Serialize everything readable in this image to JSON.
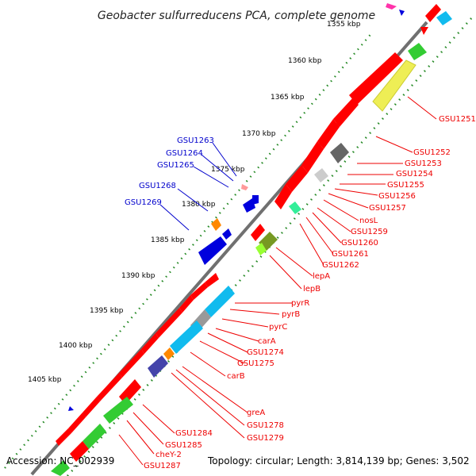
{
  "title": "Geobacter sulfurreducens PCA, complete genome",
  "footer": {
    "accession": "Accession: NC_002939",
    "topology": "Topology: circular; Length: 3,814,139 bp; Genes: 3,502"
  },
  "scale_labels": [
    "1355 kbp",
    "1360 kbp",
    "1365 kbp",
    "1370 kbp",
    "1375 kbp",
    "1380 kbp",
    "1385 kbp",
    "1390 kbp",
    "1395 kbp",
    "1400 kbp",
    "1405 kbp"
  ],
  "left_gene_labels": [
    "GSU1263",
    "GSU1264",
    "GSU1265",
    "GSU1268",
    "GSU1269"
  ],
  "right_gene_labels": [
    "GSU1251",
    "GSU1252",
    "GSU1253",
    "GSU1254",
    "GSU1255",
    "GSU1256",
    "GSU1257",
    "nosL",
    "GSU1259",
    "GSU1260",
    "GSU1261",
    "GSU1262",
    "lepA",
    "lepB",
    "pyrR",
    "pyrB",
    "pyrC",
    "carA",
    "GSU1274",
    "GSU1275",
    "carB",
    "greA",
    "GSU1278",
    "GSU1279",
    "GSU1284",
    "GSU1285",
    "cheY-2",
    "GSU1287"
  ],
  "colors": {
    "backbone": "#707070",
    "gene_red": "#ff0000",
    "gene_blue": "#0000dd",
    "gene_cyan": "#11bbee",
    "gene_green": "#33cc33",
    "gene_yellow": "#eeee55",
    "gene_navy": "#4444aa",
    "gene_olive": "#779922",
    "gene_orange": "#ff8800",
    "label_red": "#ee0000",
    "label_blue": "#0000cc",
    "dots": "#228822"
  },
  "icons": [
    "direction-arrow-icon"
  ]
}
